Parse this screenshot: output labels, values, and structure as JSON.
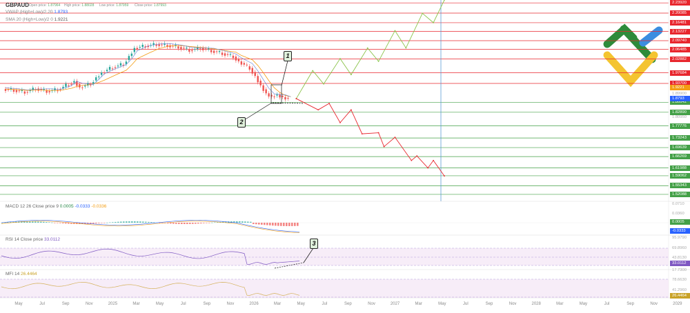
{
  "chart_data": {
    "type": "line",
    "symbol": "GBPAUD",
    "ohlc": [
      {
        "label": "Open price:",
        "value": "1.87964"
      },
      {
        "label": "High price:",
        "value": "1.88028"
      },
      {
        "label": "Low price:",
        "value": "1.87959"
      },
      {
        "label": "Close price:",
        "value": "1.87993"
      }
    ],
    "indicators": [
      {
        "name": "VWAP (High+Low)/2 20",
        "value": "1.8793",
        "color": "#2962ff"
      },
      {
        "name": "SMA 20 (High+Low)/2 0",
        "value": "1.9221",
        "color": "#f39c12"
      }
    ],
    "price_levels": [
      {
        "value": 2.2392,
        "label": "2.23920",
        "color": "#e8262d"
      },
      {
        "value": 2.20085,
        "label": "2.20085",
        "color": "#e8262d"
      },
      {
        "value": 2.16481,
        "label": "2.16481",
        "color": "#e8262d"
      },
      {
        "value": 2.13227,
        "label": "2.13227",
        "color": "#e8262d"
      },
      {
        "value": 2.0974,
        "label": "2.09740",
        "color": "#e8262d"
      },
      {
        "value": 2.06485,
        "label": "2.06485",
        "color": "#e8262d"
      },
      {
        "value": 2.02882,
        "label": "2.02882",
        "color": "#e8262d"
      },
      {
        "value": 1.97684,
        "label": "1.97684",
        "color": "#e8262d"
      },
      {
        "value": 1.937,
        "label": "1.93700",
        "color": "#e8262d"
      },
      {
        "value": 1.86642,
        "label": "1.86642",
        "color": "#43a047"
      },
      {
        "value": 1.8289,
        "label": "1.82890",
        "color": "#43a047"
      },
      {
        "value": 1.77776,
        "label": "1.77776",
        "color": "#43a047"
      },
      {
        "value": 1.73243,
        "label": "1.73243",
        "color": "#43a047"
      },
      {
        "value": 1.69639,
        "label": "1.69639",
        "color": "#43a047"
      },
      {
        "value": 1.66269,
        "label": "1.66269",
        "color": "#43a047"
      },
      {
        "value": 1.61988,
        "label": "1.61988",
        "color": "#43a047"
      },
      {
        "value": 1.59062,
        "label": "1.59062",
        "color": "#43a047"
      },
      {
        "value": 1.55343,
        "label": "1.55343",
        "color": "#43a047"
      },
      {
        "value": 1.52088,
        "label": "1.52088",
        "color": "#43a047"
      }
    ],
    "price_axis_plain": [
      "1.89900",
      "1.80950"
    ],
    "price_tags": [
      {
        "value": 1.9221,
        "label": "1.9221",
        "color": "#f39c12"
      },
      {
        "value": 1.8793,
        "label": "1.8793",
        "color": "#2962ff"
      }
    ],
    "price_ylim": [
      1.5,
      2.25
    ],
    "price_series": [
      {
        "x": 0,
        "y": 1.916
      },
      {
        "x": 2,
        "y": 1.912
      },
      {
        "x": 4,
        "y": 1.905
      },
      {
        "x": 6,
        "y": 1.918
      },
      {
        "x": 8,
        "y": 1.908
      },
      {
        "x": 10,
        "y": 1.914
      },
      {
        "x": 12,
        "y": 1.935
      },
      {
        "x": 13,
        "y": 1.946
      },
      {
        "x": 14,
        "y": 1.922
      },
      {
        "x": 16,
        "y": 1.936
      },
      {
        "x": 17,
        "y": 1.96
      },
      {
        "x": 18,
        "y": 1.978
      },
      {
        "x": 20,
        "y": 1.998
      },
      {
        "x": 22,
        "y": 2.01
      },
      {
        "x": 23,
        "y": 2.04
      },
      {
        "x": 24,
        "y": 2.07
      },
      {
        "x": 26,
        "y": 2.078
      },
      {
        "x": 28,
        "y": 2.084
      },
      {
        "x": 30,
        "y": 2.08
      },
      {
        "x": 32,
        "y": 2.074
      },
      {
        "x": 34,
        "y": 2.062
      },
      {
        "x": 36,
        "y": 2.07
      },
      {
        "x": 38,
        "y": 2.06
      },
      {
        "x": 40,
        "y": 2.05
      },
      {
        "x": 42,
        "y": 2.038
      },
      {
        "x": 43,
        "y": 2.02
      },
      {
        "x": 45,
        "y": 1.995
      },
      {
        "x": 46,
        "y": 1.965
      },
      {
        "x": 47,
        "y": 1.93
      },
      {
        "x": 48,
        "y": 1.9
      },
      {
        "x": 49,
        "y": 1.888
      },
      {
        "x": 50,
        "y": 1.895
      },
      {
        "x": 51,
        "y": 1.886
      },
      {
        "x": 52,
        "y": 1.88
      }
    ],
    "forecast_up": [
      {
        "x": 53,
        "y": 1.88
      },
      {
        "x": 56,
        "y": 1.985
      },
      {
        "x": 58,
        "y": 1.935
      },
      {
        "x": 61,
        "y": 2.03
      },
      {
        "x": 63,
        "y": 1.97
      },
      {
        "x": 66,
        "y": 2.07
      },
      {
        "x": 68,
        "y": 2.02
      },
      {
        "x": 71,
        "y": 2.135
      },
      {
        "x": 73,
        "y": 2.07
      },
      {
        "x": 76,
        "y": 2.2
      },
      {
        "x": 78,
        "y": 2.165
      },
      {
        "x": 80,
        "y": 2.25
      }
    ],
    "forecast_down": [
      {
        "x": 53,
        "y": 1.88
      },
      {
        "x": 57,
        "y": 1.838
      },
      {
        "x": 59,
        "y": 1.862
      },
      {
        "x": 61,
        "y": 1.79
      },
      {
        "x": 63,
        "y": 1.838
      },
      {
        "x": 65,
        "y": 1.748
      },
      {
        "x": 68,
        "y": 1.752
      },
      {
        "x": 69,
        "y": 1.7
      },
      {
        "x": 71,
        "y": 1.735
      },
      {
        "x": 74,
        "y": 1.648
      },
      {
        "x": 75,
        "y": 1.665
      },
      {
        "x": 77,
        "y": 1.62
      },
      {
        "x": 78,
        "y": 1.648
      },
      {
        "x": 80,
        "y": 1.59
      }
    ],
    "macd": {
      "label": "MACD 12 26 Close price 9",
      "values": [
        "0.0005",
        "-0.0333",
        "-0.0336"
      ],
      "axis": [
        "0.0710",
        "0.0360"
      ],
      "tags": [
        {
          "label": "0.0005",
          "color": "#43a047"
        },
        {
          "label": "-0.0333",
          "color": "#2962ff"
        }
      ]
    },
    "rsi": {
      "label": "RSI 14 Close price",
      "value": "33.0112",
      "axis": [
        "95.9790",
        "69.8960",
        "43.8130",
        "17.7300"
      ],
      "tag": {
        "label": "33.0112",
        "color": "#7e57c2"
      }
    },
    "mfi": {
      "label": "MFI 14",
      "value": "26.4464",
      "axis": [
        "78.6630",
        "41.2960"
      ],
      "tag": {
        "label": "26.4464",
        "color": "#c9a227"
      }
    },
    "x_months": [
      "May",
      "Jul",
      "Sep",
      "Nov",
      "2025",
      "Mar",
      "May",
      "Jul",
      "Sep",
      "Nov",
      "2026",
      "Mar",
      "May",
      "Jul",
      "Sep",
      "Nov",
      "2027",
      "Mar",
      "May",
      "Jul",
      "Sep",
      "Nov",
      "2028",
      "Mar",
      "May",
      "Jul",
      "Sep",
      "Nov",
      "2029"
    ],
    "callouts": [
      "1",
      "2",
      "3"
    ]
  }
}
